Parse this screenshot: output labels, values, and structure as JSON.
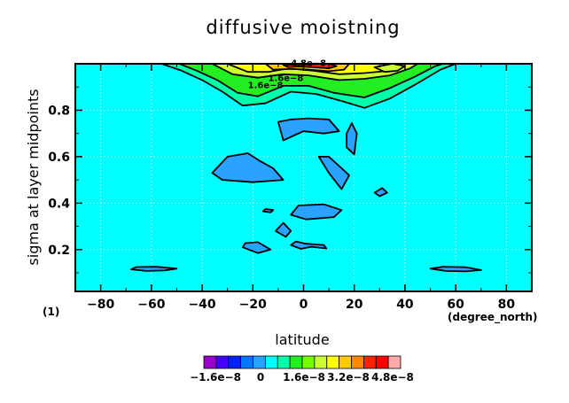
{
  "chart_data": {
    "type": "heatmap",
    "title": "diffusive moistning",
    "xlabel": "latitude",
    "ylabel": "sigma at layer midpoints",
    "x_unit_label": "(degree_north)",
    "y_unit_label": "(1)",
    "xlim": [
      -90,
      90
    ],
    "ylim": [
      1.0,
      0.02
    ],
    "x_ticks": [
      -80,
      -60,
      -40,
      -20,
      0,
      20,
      40,
      60,
      80
    ],
    "x_tick_labels": [
      "−80",
      "−60",
      "−40",
      "−20",
      "0",
      "20",
      "40",
      "60",
      "80"
    ],
    "y_ticks": [
      0.2,
      0.4,
      0.6,
      0.8
    ],
    "y_tick_labels": [
      "0.2",
      "0.4",
      "0.6",
      "0.8"
    ],
    "grid": true,
    "background_color": "#00ffff",
    "colorbar": {
      "colors": [
        "#9900cc",
        "#4400ff",
        "#0022ff",
        "#0077ff",
        "#2aa2ff",
        "#00ffff",
        "#00ffaa",
        "#22ee22",
        "#77ff00",
        "#ccff33",
        "#ffff00",
        "#ffcc00",
        "#ff8800",
        "#ff2200",
        "#ff0000",
        "#ffaaaa"
      ],
      "tick_labels": [
        "−1.6e−8",
        "0",
        "1.6e−8",
        "3.2e−8",
        "4.8e−8"
      ],
      "tick_values": [
        -1.6e-08,
        0,
        1.6e-08,
        3.2e-08,
        4.8e-08
      ]
    },
    "regions": [
      {
        "level": "negative",
        "color": "#2aa2ff",
        "points": [
          [
            -68,
            0.115
          ],
          [
            -62,
            0.108
          ],
          [
            -55,
            0.11
          ],
          [
            -50,
            0.118
          ],
          [
            -58,
            0.126
          ],
          [
            -66,
            0.125
          ]
        ]
      },
      {
        "level": "negative",
        "color": "#2aa2ff",
        "points": [
          [
            50,
            0.118
          ],
          [
            56,
            0.108
          ],
          [
            64,
            0.106
          ],
          [
            70,
            0.112
          ],
          [
            64,
            0.124
          ],
          [
            55,
            0.126
          ]
        ]
      },
      {
        "level": "negative",
        "color": "#2aa2ff",
        "points": [
          [
            -24,
            0.21
          ],
          [
            -18,
            0.185
          ],
          [
            -13,
            0.2
          ],
          [
            -18,
            0.232
          ],
          [
            -23,
            0.228
          ]
        ]
      },
      {
        "level": "negative",
        "color": "#2aa2ff",
        "points": [
          [
            -5,
            0.22
          ],
          [
            -1,
            0.203
          ],
          [
            3,
            0.212
          ],
          [
            9,
            0.205
          ],
          [
            8,
            0.22
          ],
          [
            1,
            0.225
          ],
          [
            -3,
            0.235
          ]
        ]
      },
      {
        "level": "negative",
        "color": "#2aa2ff",
        "points": [
          [
            -11,
            0.28
          ],
          [
            -7,
            0.255
          ],
          [
            -5,
            0.28
          ],
          [
            -8,
            0.315
          ]
        ]
      },
      {
        "level": "negative",
        "color": "#2aa2ff",
        "points": [
          [
            -16,
            0.365
          ],
          [
            -13,
            0.36
          ],
          [
            -12,
            0.37
          ],
          [
            -15,
            0.375
          ]
        ]
      },
      {
        "level": "negative",
        "color": "#2aa2ff",
        "points": [
          [
            -5,
            0.35
          ],
          [
            1,
            0.33
          ],
          [
            12,
            0.34
          ],
          [
            15,
            0.37
          ],
          [
            8,
            0.395
          ],
          [
            -2,
            0.39
          ]
        ]
      },
      {
        "level": "negative",
        "color": "#2aa2ff",
        "points": [
          [
            -36,
            0.53
          ],
          [
            -32,
            0.5
          ],
          [
            -20,
            0.49
          ],
          [
            -8,
            0.5
          ],
          [
            -12,
            0.55
          ],
          [
            -17,
            0.58
          ],
          [
            -22,
            0.615
          ],
          [
            -30,
            0.6
          ]
        ]
      },
      {
        "level": "negative",
        "color": "#2aa2ff",
        "points": [
          [
            6,
            0.6
          ],
          [
            10,
            0.53
          ],
          [
            15,
            0.46
          ],
          [
            18,
            0.52
          ],
          [
            14,
            0.56
          ],
          [
            10,
            0.6
          ]
        ]
      },
      {
        "level": "negative",
        "color": "#2aa2ff",
        "points": [
          [
            28,
            0.445
          ],
          [
            30,
            0.43
          ],
          [
            33,
            0.445
          ],
          [
            31,
            0.465
          ]
        ]
      },
      {
        "level": "negative",
        "color": "#2aa2ff",
        "points": [
          [
            17,
            0.64
          ],
          [
            20,
            0.61
          ],
          [
            21,
            0.7
          ],
          [
            19,
            0.745
          ],
          [
            17,
            0.7
          ]
        ]
      },
      {
        "level": "negative",
        "color": "#2aa2ff",
        "points": [
          [
            -10,
            0.75
          ],
          [
            -8,
            0.67
          ],
          [
            0,
            0.71
          ],
          [
            8,
            0.7
          ],
          [
            14,
            0.71
          ],
          [
            10,
            0.76
          ],
          [
            2,
            0.765
          ],
          [
            -5,
            0.76
          ]
        ]
      },
      {
        "level": "positive-1",
        "color": "#00ffaa",
        "points": [
          [
            -56,
            1.0
          ],
          [
            -48,
            0.97
          ],
          [
            -40,
            0.93
          ],
          [
            -32,
            0.88
          ],
          [
            -24,
            0.82
          ],
          [
            -15,
            0.83
          ],
          [
            -5,
            0.88
          ],
          [
            5,
            0.87
          ],
          [
            15,
            0.84
          ],
          [
            24,
            0.81
          ],
          [
            34,
            0.85
          ],
          [
            44,
            0.91
          ],
          [
            54,
            0.975
          ],
          [
            60,
            1.0
          ]
        ]
      },
      {
        "level": "positive-2",
        "color": "#22ee22",
        "points": [
          [
            -49,
            1.0
          ],
          [
            -42,
            0.97
          ],
          [
            -34,
            0.93
          ],
          [
            -26,
            0.875
          ],
          [
            -18,
            0.86
          ],
          [
            -8,
            0.905
          ],
          [
            2,
            0.905
          ],
          [
            12,
            0.875
          ],
          [
            24,
            0.855
          ],
          [
            34,
            0.895
          ],
          [
            44,
            0.945
          ],
          [
            52,
            0.99
          ],
          [
            55,
            1.0
          ]
        ]
      },
      {
        "level": "positive-3",
        "color": "#ccff33",
        "points": [
          [
            -36,
            1.0
          ],
          [
            -28,
            0.955
          ],
          [
            -18,
            0.94
          ],
          [
            -8,
            0.955
          ],
          [
            2,
            0.95
          ],
          [
            14,
            0.93
          ],
          [
            24,
            0.935
          ],
          [
            34,
            0.95
          ],
          [
            42,
            0.98
          ],
          [
            45,
            1.0
          ]
        ]
      },
      {
        "level": "positive-4",
        "color": "#ffff00",
        "points": [
          [
            -30,
            1.0
          ],
          [
            -22,
            0.965
          ],
          [
            -14,
            0.965
          ],
          [
            -6,
            0.98
          ],
          [
            4,
            0.97
          ],
          [
            14,
            0.955
          ],
          [
            24,
            0.96
          ],
          [
            34,
            0.97
          ],
          [
            38,
            1.0
          ]
        ]
      },
      {
        "level": "positive-5",
        "color": "#ffcc00",
        "points": [
          [
            -15,
            1.0
          ],
          [
            -12,
            0.975
          ],
          [
            -5,
            0.978
          ],
          [
            2,
            0.975
          ],
          [
            10,
            0.968
          ],
          [
            16,
            0.975
          ],
          [
            18,
            1.0
          ]
        ]
      },
      {
        "level": "positive-6",
        "color": "#ff2200",
        "points": [
          [
            -8,
            0.995
          ],
          [
            -6,
            0.985
          ],
          [
            -2,
            0.988
          ],
          [
            4,
            0.985
          ],
          [
            10,
            0.98
          ],
          [
            13,
            0.99
          ],
          [
            10,
            1.0
          ]
        ]
      },
      {
        "level": "positive-3",
        "color": "#ccff33",
        "points": [
          [
            28,
            0.985
          ],
          [
            32,
            0.965
          ],
          [
            37,
            0.97
          ],
          [
            40,
            0.99
          ],
          [
            35,
            1.0
          ]
        ]
      }
    ],
    "contour_labels": [
      {
        "text": "1.6e−8",
        "x": -15,
        "y": 0.895
      },
      {
        "text": "1.6e−8",
        "x": -7,
        "y": 0.925
      },
      {
        "text": "4.8e−8",
        "x": 2,
        "y": 0.99
      }
    ]
  }
}
